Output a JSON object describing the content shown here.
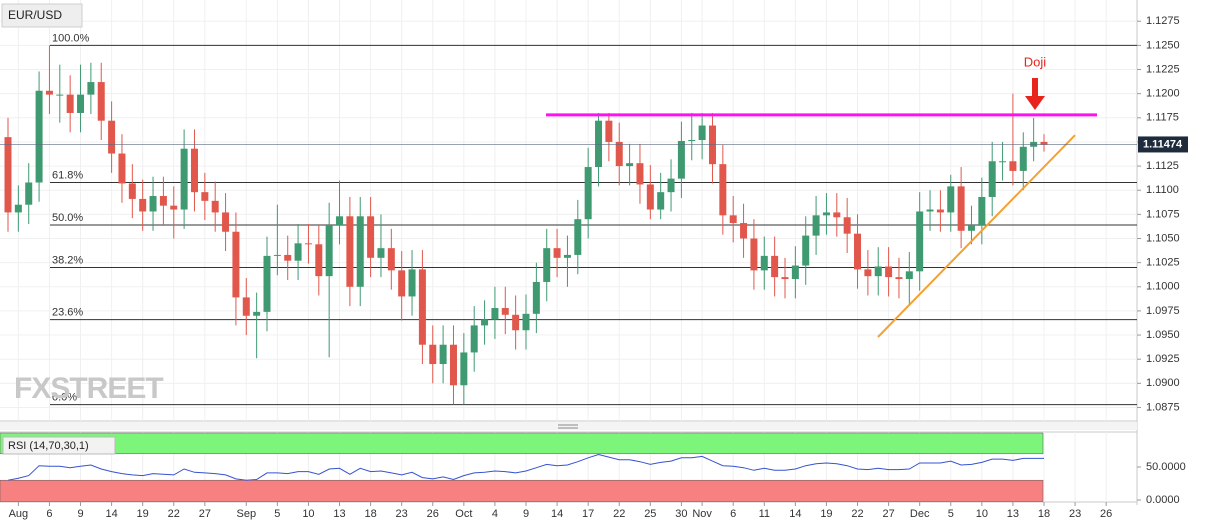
{
  "chart_data": [
    {
      "type": "candlestick",
      "title": "EUR/USD",
      "watermark": "FXSTREET",
      "categories": [
        null,
        "Aug",
        null,
        null,
        "6",
        null,
        null,
        "9",
        null,
        null,
        "14",
        null,
        null,
        "19",
        null,
        null,
        "22",
        null,
        null,
        "27",
        null,
        null,
        null,
        "Sep",
        null,
        null,
        "5",
        null,
        null,
        "10",
        null,
        null,
        "13",
        null,
        null,
        "18",
        null,
        null,
        "23",
        null,
        null,
        "26",
        null,
        null,
        "Oct",
        null,
        null,
        "4",
        null,
        null,
        "9",
        null,
        null,
        "14",
        null,
        null,
        "17",
        null,
        null,
        "22",
        null,
        null,
        "25",
        null,
        null,
        "30",
        null,
        "Nov",
        null,
        null,
        "6",
        null,
        null,
        "11",
        null,
        null,
        "14",
        null,
        null,
        "19",
        null,
        null,
        "22",
        null,
        null,
        "27",
        null,
        null,
        "Dec",
        null,
        null,
        "5",
        null,
        null,
        "10",
        null,
        null,
        "13",
        null,
        null,
        "18",
        null,
        null,
        "23",
        null,
        null,
        "26"
      ],
      "open": [
        1.1155,
        1.1077,
        1.1085,
        1.1108,
        1.1203,
        1.1199,
        1.1199,
        1.118,
        1.1199,
        1.1212,
        1.1172,
        1.1138,
        1.1107,
        1.1091,
        1.1078,
        1.1094,
        1.1084,
        1.108,
        1.1143,
        1.1098,
        1.1089,
        1.1077,
        1.1057,
        1.0989,
        1.097,
        1.0974,
        1.1032,
        1.1033,
        1.1027,
        1.1045,
        1.1044,
        1.1011,
        1.1064,
        1.1073,
        1.1,
        1.1073,
        1.103,
        1.104,
        1.1017,
        1.099,
        1.1018,
        1.094,
        1.092,
        1.094,
        1.0898,
        1.0932,
        1.096,
        1.0966,
        1.0978,
        1.0971,
        1.0955,
        1.0972,
        1.1005,
        1.104,
        1.103,
        1.1033,
        1.107,
        1.1124,
        1.1172,
        1.115,
        1.1125,
        1.1128,
        1.1106,
        1.108,
        1.1098,
        1.1112,
        1.1151,
        1.1152,
        1.1167,
        1.1127,
        1.1074,
        1.1066,
        1.105,
        1.1017,
        1.1032,
        1.101,
        1.1008,
        1.1022,
        1.1053,
        1.1074,
        1.1077,
        1.1072,
        1.1055,
        1.1018,
        1.1011,
        1.1021,
        1.101,
        1.1008,
        1.1016,
        1.1078,
        1.108,
        1.1077,
        1.1104,
        1.1058,
        1.1064,
        1.1093,
        1.113,
        1.113,
        1.112,
        1.1145,
        1.115,
        null,
        null,
        null,
        null,
        null,
        null
      ],
      "high": [
        1.1175,
        1.1105,
        1.1128,
        1.1223,
        1.125,
        1.123,
        1.1219,
        1.123,
        1.1232,
        1.1232,
        1.1192,
        1.1158,
        1.1127,
        1.1111,
        1.1114,
        1.1114,
        1.1104,
        1.1163,
        1.1163,
        1.1118,
        1.1109,
        1.1097,
        1.1077,
        1.1009,
        1.0994,
        1.1052,
        1.1085,
        1.1053,
        1.1065,
        1.1065,
        1.1064,
        1.1087,
        1.111,
        1.1093,
        1.1093,
        1.1093,
        1.1075,
        1.106,
        1.1037,
        1.1038,
        1.1038,
        1.096,
        1.096,
        1.096,
        1.0952,
        1.098,
        1.0986,
        1.1,
        1.1,
        1.0991,
        1.0992,
        1.1025,
        1.106,
        1.106,
        1.1053,
        1.109,
        1.1144,
        1.118,
        1.118,
        1.117,
        1.1148,
        1.1148,
        1.1126,
        1.1118,
        1.1132,
        1.1171,
        1.118,
        1.118,
        1.118,
        1.1147,
        1.1094,
        1.1086,
        1.107,
        1.1052,
        1.1052,
        1.103,
        1.1042,
        1.1073,
        1.1094,
        1.1097,
        1.1097,
        1.1092,
        1.1075,
        1.1038,
        1.1041,
        1.1041,
        1.103,
        1.1036,
        1.1098,
        1.11,
        1.11,
        1.1116,
        1.1124,
        1.1084,
        1.1113,
        1.115,
        1.115,
        1.12,
        1.116,
        1.1175,
        1.1158,
        null,
        null,
        null,
        null,
        null,
        null
      ],
      "low": [
        1.1057,
        1.1057,
        1.1065,
        1.1088,
        1.1179,
        1.117,
        1.116,
        1.116,
        1.1179,
        1.1152,
        1.1118,
        1.1087,
        1.1071,
        1.1058,
        1.1058,
        1.1064,
        1.105,
        1.106,
        1.1078,
        1.1069,
        1.1057,
        1.1037,
        1.096,
        1.095,
        1.0926,
        1.0954,
        1.1012,
        1.1007,
        1.1007,
        1.1024,
        1.0991,
        1.0927,
        1.1044,
        1.098,
        1.098,
        1.101,
        1.101,
        1.0997,
        1.0965,
        1.097,
        1.092,
        1.09,
        1.09,
        1.0878,
        1.0878,
        1.0912,
        1.094,
        1.0946,
        1.0951,
        1.0935,
        1.0935,
        1.0952,
        1.0985,
        1.101,
        1.1,
        1.1013,
        1.105,
        1.1104,
        1.113,
        1.1105,
        1.1105,
        1.1086,
        1.107,
        1.107,
        1.1078,
        1.1092,
        1.1131,
        1.1132,
        1.1107,
        1.1054,
        1.1046,
        1.103,
        1.0997,
        1.0997,
        1.099,
        1.0988,
        1.0988,
        1.1002,
        1.1033,
        1.1054,
        1.1052,
        1.1035,
        1.0998,
        1.0991,
        1.0991,
        1.099,
        1.0988,
        1.0981,
        1.0996,
        1.1058,
        1.1057,
        1.1057,
        1.104,
        1.1044,
        1.1044,
        1.1073,
        1.111,
        1.1105,
        1.11,
        1.113,
        1.114,
        null,
        null,
        null,
        null,
        null,
        null
      ],
      "close": [
        1.1077,
        1.1085,
        1.1108,
        1.1203,
        1.1199,
        1.1199,
        1.118,
        1.1199,
        1.1212,
        1.1172,
        1.1138,
        1.1107,
        1.1091,
        1.1078,
        1.1094,
        1.1084,
        1.108,
        1.1143,
        1.1098,
        1.1089,
        1.1077,
        1.1057,
        1.0989,
        1.097,
        1.0974,
        1.1032,
        1.1033,
        1.1027,
        1.1045,
        1.1044,
        1.1011,
        1.1064,
        1.1073,
        1.1,
        1.1073,
        1.103,
        1.104,
        1.1017,
        1.099,
        1.1018,
        1.094,
        1.092,
        1.094,
        1.0898,
        1.0932,
        1.096,
        1.0966,
        1.0978,
        1.0971,
        1.0955,
        1.0972,
        1.1005,
        1.104,
        1.103,
        1.1033,
        1.107,
        1.1124,
        1.1172,
        1.115,
        1.1125,
        1.1128,
        1.1106,
        1.108,
        1.1098,
        1.1112,
        1.1151,
        1.1152,
        1.1167,
        1.1127,
        1.1074,
        1.1066,
        1.105,
        1.1017,
        1.1032,
        1.101,
        1.1008,
        1.1022,
        1.1053,
        1.1074,
        1.1077,
        1.1072,
        1.1055,
        1.1018,
        1.1011,
        1.1021,
        1.101,
        1.1008,
        1.1016,
        1.1078,
        1.108,
        1.1077,
        1.1104,
        1.1058,
        1.1064,
        1.1093,
        1.113,
        1.113,
        1.112,
        1.1145,
        1.115,
        1.1147,
        null,
        null,
        null,
        null,
        null,
        null
      ],
      "up_color": "#3f9a72",
      "down_color": "#e2574c",
      "ylim": [
        1.0861,
        1.1297
      ],
      "yticks": [
        1.0875,
        {
          "value": 1.09,
          "label": "1.0900"
        },
        1.0925,
        {
          "value": 1.095,
          "label": "1.0950"
        },
        1.0975,
        {
          "value": 1.1,
          "label": "1.1000"
        },
        1.1025,
        {
          "value": 1.105,
          "label": "1.1050"
        },
        1.1075,
        {
          "value": 1.11,
          "label": "1.1100"
        },
        1.1125,
        {
          "value": 1.115,
          "label": "1.1150"
        },
        1.1175,
        {
          "value": 1.12,
          "label": "1.1200"
        },
        1.1225,
        {
          "value": 1.125,
          "label": "1.1250"
        },
        1.1275
      ],
      "grid": true,
      "last_price": 1.11474,
      "fibonacci": [
        {
          "label": "100.0%",
          "value": 1.125
        },
        {
          "label": "61.8%",
          "value": 1.1108
        },
        {
          "label": "50.0%",
          "value": 1.1064
        },
        {
          "label": "38.2%",
          "value": 1.102
        },
        {
          "label": "23.6%",
          "value": 1.0966
        },
        {
          "label": "0.0%",
          "value": 1.0878
        }
      ],
      "resistance": {
        "value": 1.1178,
        "color": "#ff10f0"
      },
      "support_line": {
        "values": [
          1.0948,
          1.1157
        ],
        "color": "#f5a030"
      },
      "annotation": {
        "text": "Doji",
        "color": "#e8251c"
      }
    },
    {
      "type": "line",
      "title": "RSI (14,70,30,1)",
      "color": "#3553d1",
      "values": [
        30,
        33,
        37,
        52,
        51,
        51,
        49,
        51,
        53,
        47,
        43,
        40,
        38,
        37,
        40,
        39,
        38,
        47,
        42,
        41,
        40,
        38,
        32,
        30,
        31,
        41,
        41,
        40,
        43,
        43,
        39,
        47,
        48,
        39,
        48,
        43,
        44,
        41,
        38,
        42,
        34,
        32,
        35,
        31,
        37,
        41,
        42,
        44,
        43,
        41,
        44,
        49,
        54,
        52,
        53,
        58,
        64,
        69,
        65,
        61,
        61,
        58,
        54,
        57,
        59,
        64,
        64,
        66,
        59,
        52,
        51,
        49,
        45,
        48,
        45,
        45,
        47,
        52,
        55,
        56,
        55,
        52,
        47,
        46,
        48,
        46,
        46,
        47,
        56,
        56,
        56,
        59,
        53,
        54,
        57,
        62,
        62,
        60,
        63,
        63,
        63,
        null,
        null,
        null,
        null,
        null,
        null
      ],
      "ylim": [
        -3,
        103
      ],
      "yticks": [
        {
          "value": 50,
          "label": "50.0000"
        },
        {
          "value": 0,
          "label": "0.0000"
        }
      ],
      "overbought": 70,
      "oversold": 30,
      "overbought_color": "#7cf57a",
      "oversold_color": "#f78080"
    }
  ]
}
